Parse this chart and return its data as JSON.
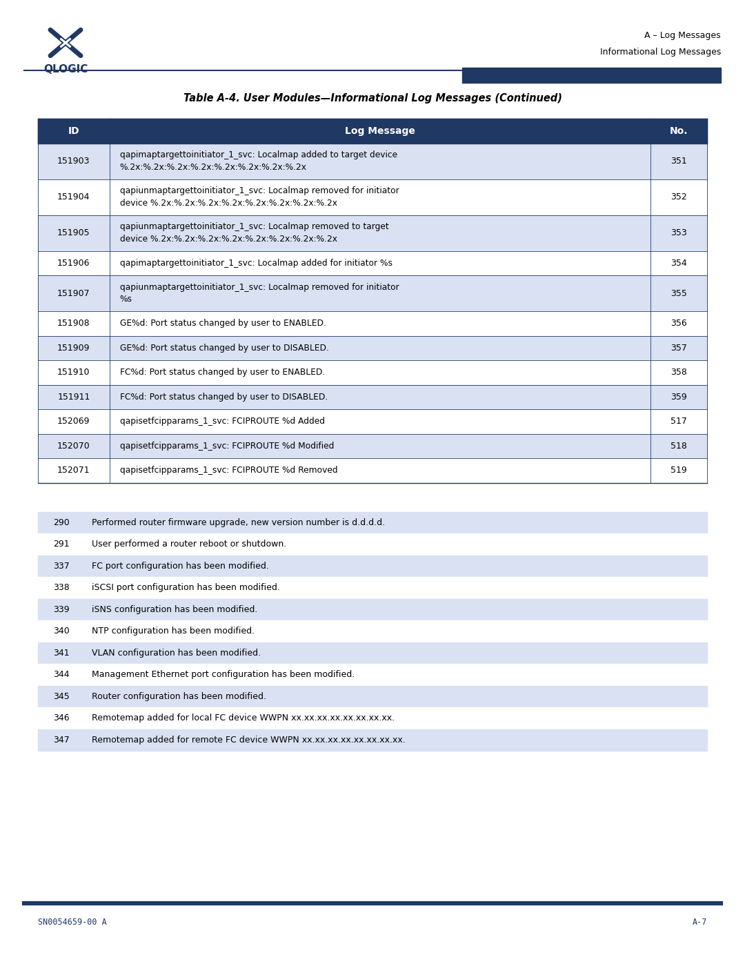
{
  "page_width": 10.8,
  "page_height": 13.97,
  "bg_color": "#ffffff",
  "header_text_line1": "A – Log Messages",
  "header_text_line2": "Informational Log Messages",
  "header_bar_color": "#1f3864",
  "footer_text_left": "SN0054659-00 A",
  "footer_text_right": "A-7",
  "table_title": "Table A-4. User Modules—Informational Log Messages (Continued)",
  "table_header_bg": "#1f3864",
  "table_header_color": "#ffffff",
  "table_col_headers": [
    "ID",
    "Log Message",
    "No."
  ],
  "table_row_bg_shaded": "#d9e1f2",
  "table_row_bg_white": "#ffffff",
  "table_border_color": "#1f3864",
  "main_table_rows": [
    {
      "id": "151903",
      "msg": "qapimaptargettoinitiator_1_svc: Localmap added to target device\n%.2x:%.2x:%.2x:%.2x:%.2x:%.2x:%.2x:%.2x",
      "no": "351",
      "shaded": true
    },
    {
      "id": "151904",
      "msg": "qapiunmaptargettoinitiator_1_svc: Localmap removed for initiator\ndevice %.2x:%.2x:%.2x:%.2x:%.2x:%.2x:%.2x:%.2x",
      "no": "352",
      "shaded": false
    },
    {
      "id": "151905",
      "msg": "qapiunmaptargettoinitiator_1_svc: Localmap removed to target\ndevice %.2x:%.2x:%.2x:%.2x:%.2x:%.2x:%.2x:%.2x",
      "no": "353",
      "shaded": true
    },
    {
      "id": "151906",
      "msg": "qapimaptargettoinitiator_1_svc: Localmap added for initiator %s",
      "no": "354",
      "shaded": false
    },
    {
      "id": "151907",
      "msg": "qapiunmaptargettoinitiator_1_svc: Localmap removed for initiator\n%s",
      "no": "355",
      "shaded": true
    },
    {
      "id": "151908",
      "msg": "GE%d: Port status changed by user to ENABLED.",
      "no": "356",
      "shaded": false
    },
    {
      "id": "151909",
      "msg": "GE%d: Port status changed by user to DISABLED.",
      "no": "357",
      "shaded": true
    },
    {
      "id": "151910",
      "msg": "FC%d: Port status changed by user to ENABLED.",
      "no": "358",
      "shaded": false
    },
    {
      "id": "151911",
      "msg": "FC%d: Port status changed by user to DISABLED.",
      "no": "359",
      "shaded": true
    },
    {
      "id": "152069",
      "msg": "qapisetfcipparams_1_svc: FCIPROUTE %d Added",
      "no": "517",
      "shaded": false
    },
    {
      "id": "152070",
      "msg": "qapisetfcipparams_1_svc: FCIPROUTE %d Modified",
      "no": "518",
      "shaded": true
    },
    {
      "id": "152071",
      "msg": "qapisetfcipparams_1_svc: FCIPROUTE %d Removed",
      "no": "519",
      "shaded": false
    }
  ],
  "ref_table_rows": [
    {
      "no": "290",
      "msg": "Performed router firmware upgrade, new version number is d.d.d.d.",
      "shaded": true
    },
    {
      "no": "291",
      "msg": "User performed a router reboot or shutdown.",
      "shaded": false
    },
    {
      "no": "337",
      "msg": "FC port configuration has been modified.",
      "shaded": true
    },
    {
      "no": "338",
      "msg": "iSCSI port configuration has been modified.",
      "shaded": false
    },
    {
      "no": "339",
      "msg": "iSNS configuration has been modified.",
      "shaded": true
    },
    {
      "no": "340",
      "msg": "NTP configuration has been modified.",
      "shaded": false
    },
    {
      "no": "341",
      "msg": "VLAN configuration has been modified.",
      "shaded": true
    },
    {
      "no": "344",
      "msg": "Management Ethernet port configuration has been modified.",
      "shaded": false
    },
    {
      "no": "345",
      "msg": "Router configuration has been modified.",
      "shaded": true
    },
    {
      "no": "346",
      "msg": "Remotemap added for local FC device WWPN xx.xx.xx.xx.xx.xx.xx.xx.",
      "shaded": false
    },
    {
      "no": "347",
      "msg": "Remotemap added for remote FC device WWPN xx.xx.xx.xx.xx.xx.xx.xx.",
      "shaded": true
    }
  ]
}
